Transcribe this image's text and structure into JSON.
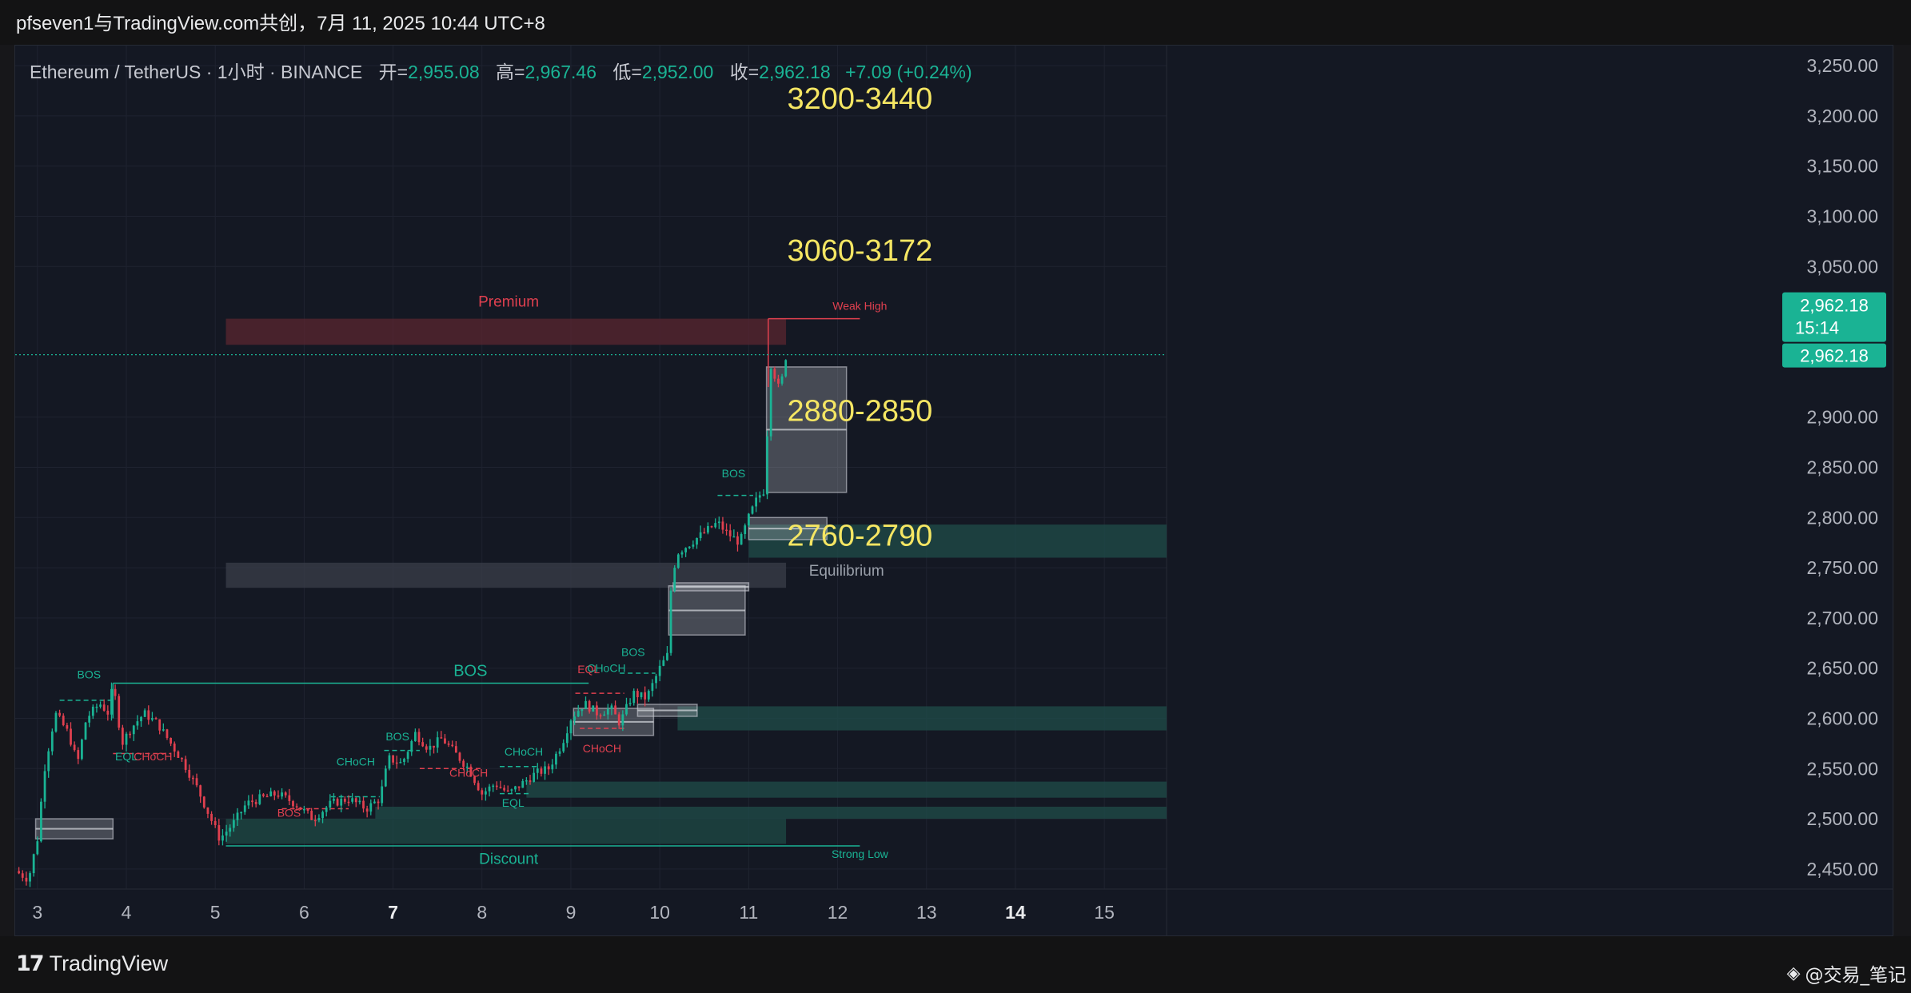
{
  "header": {
    "title": "pfseven1与TradingView.com共创，7月 11, 2025 10:44 UTC+8"
  },
  "symbol": {
    "name": "Ethereum / TetherUS · 1小时 · BINANCE",
    "open_label": "开=",
    "open": "2,955.08",
    "high_label": "高=",
    "high": "2,967.46",
    "low_label": "低=",
    "low": "2,952.00",
    "close_label": "收=",
    "close": "2,962.18",
    "change": "+7.09 (+0.24%)"
  },
  "price_tag": {
    "price": "2,962.18",
    "countdown": "15:14",
    "price2": "2,962.18"
  },
  "colors": {
    "up": "#1ab394",
    "down": "#e0404f",
    "target_text": "#f5e663",
    "zone_teal": "#1f4c4a",
    "premium_zone": "#5a2530",
    "background": "#141823"
  },
  "chart_data": {
    "type": "candlestick",
    "y_axis": {
      "range": [
        2430,
        3270
      ],
      "ticks": [
        "3,250.00",
        "3,200.00",
        "3,150.00",
        "3,100.00",
        "3,050.00",
        "2,900.00",
        "2,850.00",
        "2,800.00",
        "2,750.00",
        "2,700.00",
        "2,650.00",
        "2,600.00",
        "2,550.00",
        "2,500.00",
        "2,450.00"
      ],
      "tick_values": [
        3250,
        3200,
        3150,
        3100,
        3050,
        2900,
        2850,
        2800,
        2750,
        2700,
        2650,
        2600,
        2550,
        2500,
        2450
      ]
    },
    "x_axis": {
      "range": [
        2.75,
        15.7
      ],
      "ticks": [
        {
          "value": 3,
          "label": "3",
          "bold": false
        },
        {
          "value": 4,
          "label": "4",
          "bold": false
        },
        {
          "value": 5,
          "label": "5",
          "bold": false
        },
        {
          "value": 6,
          "label": "6",
          "bold": false
        },
        {
          "value": 7,
          "label": "7",
          "bold": true
        },
        {
          "value": 8,
          "label": "8",
          "bold": false
        },
        {
          "value": 9,
          "label": "9",
          "bold": false
        },
        {
          "value": 10,
          "label": "10",
          "bold": false
        },
        {
          "value": 11,
          "label": "11",
          "bold": false
        },
        {
          "value": 12,
          "label": "12",
          "bold": false
        },
        {
          "value": 13,
          "label": "13",
          "bold": false
        },
        {
          "value": 14,
          "label": "14",
          "bold": true
        },
        {
          "value": 15,
          "label": "15",
          "bold": false
        }
      ]
    },
    "grid": true,
    "current_price": 2962.18,
    "price_path": [
      [
        2.75,
        2448
      ],
      [
        2.9,
        2440
      ],
      [
        3.0,
        2480
      ],
      [
        3.08,
        2550
      ],
      [
        3.2,
        2605
      ],
      [
        3.35,
        2585
      ],
      [
        3.45,
        2555
      ],
      [
        3.55,
        2600
      ],
      [
        3.7,
        2615
      ],
      [
        3.8,
        2605
      ],
      [
        3.85,
        2635
      ],
      [
        3.95,
        2575
      ],
      [
        4.05,
        2590
      ],
      [
        4.2,
        2605
      ],
      [
        4.35,
        2595
      ],
      [
        4.5,
        2575
      ],
      [
        4.65,
        2555
      ],
      [
        4.8,
        2530
      ],
      [
        4.95,
        2500
      ],
      [
        5.05,
        2480
      ],
      [
        5.2,
        2495
      ],
      [
        5.35,
        2515
      ],
      [
        5.5,
        2520
      ],
      [
        5.7,
        2525
      ],
      [
        5.9,
        2515
      ],
      [
        6.1,
        2500
      ],
      [
        6.3,
        2515
      ],
      [
        6.5,
        2520
      ],
      [
        6.7,
        2510
      ],
      [
        6.85,
        2520
      ],
      [
        6.95,
        2560
      ],
      [
        7.1,
        2555
      ],
      [
        7.25,
        2585
      ],
      [
        7.4,
        2570
      ],
      [
        7.55,
        2580
      ],
      [
        7.7,
        2565
      ],
      [
        7.85,
        2550
      ],
      [
        8.0,
        2525
      ],
      [
        8.15,
        2535
      ],
      [
        8.3,
        2525
      ],
      [
        8.45,
        2535
      ],
      [
        8.6,
        2545
      ],
      [
        8.75,
        2550
      ],
      [
        8.9,
        2575
      ],
      [
        9.0,
        2600
      ],
      [
        9.15,
        2615
      ],
      [
        9.3,
        2605
      ],
      [
        9.45,
        2610
      ],
      [
        9.55,
        2595
      ],
      [
        9.7,
        2625
      ],
      [
        9.85,
        2620
      ],
      [
        10.0,
        2650
      ],
      [
        10.1,
        2665
      ],
      [
        10.13,
        2740
      ],
      [
        10.2,
        2765
      ],
      [
        10.35,
        2775
      ],
      [
        10.5,
        2785
      ],
      [
        10.65,
        2795
      ],
      [
        10.75,
        2785
      ],
      [
        10.9,
        2775
      ],
      [
        11.0,
        2800
      ],
      [
        11.1,
        2820
      ],
      [
        11.2,
        2830
      ],
      [
        11.22,
        2960
      ],
      [
        11.28,
        2945
      ],
      [
        11.35,
        2925
      ],
      [
        11.42,
        2962
      ]
    ],
    "zones": [
      {
        "name": "premium",
        "label": "Premium",
        "x": [
          5.12,
          11.42
        ],
        "y": [
          2972,
          2998
        ],
        "color": "#5a2530"
      },
      {
        "name": "equilibrium",
        "label": "Equilibrium",
        "x": [
          5.12,
          11.42
        ],
        "y": [
          2730,
          2755
        ],
        "color": "#3a3e4a"
      },
      {
        "name": "discount",
        "label": "Discount",
        "x": [
          5.12,
          11.42
        ],
        "y": [
          2475,
          2500
        ],
        "color": "#1e4a46"
      },
      {
        "name": "ob-2760-2790",
        "x": [
          11.0,
          15.7
        ],
        "y": [
          2760,
          2793
        ],
        "color": "#1f4c4a"
      },
      {
        "name": "ob-2600",
        "x": [
          10.2,
          15.7
        ],
        "y": [
          2588,
          2612
        ],
        "color": "#1f4c4a"
      },
      {
        "name": "ob-2530",
        "x": [
          8.5,
          15.7
        ],
        "y": [
          2521,
          2537
        ],
        "color": "#1f4c4a"
      },
      {
        "name": "ob-2505",
        "x": [
          6.8,
          15.7
        ],
        "y": [
          2500,
          2512
        ],
        "color": "#1f4c4a"
      }
    ],
    "boxes": [
      {
        "x": [
          11.2,
          12.1
        ],
        "y": [
          2825,
          2950
        ]
      },
      {
        "x": [
          11.0,
          11.88
        ],
        "y": [
          2778,
          2800
        ]
      },
      {
        "x": [
          10.1,
          10.96
        ],
        "y": [
          2683,
          2732
        ]
      },
      {
        "x": [
          10.15,
          11.0
        ],
        "y": [
          2727,
          2735
        ]
      },
      {
        "x": [
          9.03,
          9.93
        ],
        "y": [
          2583,
          2610
        ]
      },
      {
        "x": [
          9.75,
          10.42
        ],
        "y": [
          2602,
          2614
        ]
      },
      {
        "x": [
          2.98,
          3.85
        ],
        "y": [
          2480,
          2500
        ]
      }
    ],
    "lines": [
      {
        "name": "weak-high-line",
        "x": [
          11.22,
          12.25
        ],
        "y": 2998,
        "color": "#e0404f"
      },
      {
        "name": "strong-low-line",
        "x": [
          5.12,
          12.25
        ],
        "y": 2473,
        "color": "#1ab394"
      },
      {
        "name": "bos-major-line",
        "x": [
          3.85,
          9.2
        ],
        "y": 2635,
        "color": "#1ab394"
      }
    ],
    "labels": [
      {
        "name": "target-3200",
        "text": "3200-3440",
        "x": 12.25,
        "y": 3207,
        "kind": "target"
      },
      {
        "name": "target-3060",
        "text": "3060-3172",
        "x": 12.25,
        "y": 3056,
        "kind": "target"
      },
      {
        "name": "target-2880",
        "text": "2880-2850",
        "x": 12.25,
        "y": 2896,
        "kind": "target"
      },
      {
        "name": "target-2760",
        "text": "2760-2790",
        "x": 12.25,
        "y": 2772,
        "kind": "target"
      },
      {
        "name": "label-premium",
        "text": "Premium",
        "x": 8.3,
        "y": 3010,
        "kind": "zone-red"
      },
      {
        "name": "label-equilibrium",
        "text": "Equilibrium",
        "x": 12.1,
        "y": 2742,
        "kind": "zone-grey"
      },
      {
        "name": "label-discount",
        "text": "Discount",
        "x": 8.3,
        "y": 2455,
        "kind": "zone-teal"
      },
      {
        "name": "label-weak-high",
        "text": "Weak High",
        "x": 12.25,
        "y": 3007,
        "kind": "small-red"
      },
      {
        "name": "label-strong-low",
        "text": "Strong Low",
        "x": 12.25,
        "y": 2461,
        "kind": "small-teal"
      },
      {
        "name": "label-bos-major",
        "text": "BOS",
        "x": 7.87,
        "y": 2642,
        "kind": "teal-big"
      },
      {
        "name": "label-bos-1",
        "text": "BOS",
        "x": 3.58,
        "y": 2640,
        "kind": "small-teal"
      },
      {
        "name": "label-eql-1",
        "text": "EQL",
        "x": 4.0,
        "y": 2558,
        "kind": "small-teal"
      },
      {
        "name": "label-choch-1",
        "text": "CHoCH",
        "x": 4.3,
        "y": 2558,
        "kind": "small-red"
      },
      {
        "name": "label-bos-2",
        "text": "BOS",
        "x": 5.83,
        "y": 2502,
        "kind": "small-red"
      },
      {
        "name": "label-choch-2",
        "text": "CHoCH",
        "x": 6.58,
        "y": 2553,
        "kind": "small-teal"
      },
      {
        "name": "label-bos-3",
        "text": "BOS",
        "x": 7.05,
        "y": 2578,
        "kind": "small-teal"
      },
      {
        "name": "label-choch-3",
        "text": "CHoCH",
        "x": 7.85,
        "y": 2542,
        "kind": "small-red"
      },
      {
        "name": "label-choch-4",
        "text": "CHoCH",
        "x": 8.47,
        "y": 2563,
        "kind": "small-teal"
      },
      {
        "name": "label-eql-2",
        "text": "EQL",
        "x": 8.35,
        "y": 2512,
        "kind": "small-teal"
      },
      {
        "name": "label-eql-3",
        "text": "EQL",
        "x": 9.2,
        "y": 2645,
        "kind": "small-red"
      },
      {
        "name": "label-choch-5",
        "text": "CHoCH",
        "x": 9.4,
        "y": 2646,
        "kind": "small-teal"
      },
      {
        "name": "label-choch-6",
        "text": "CHoCH",
        "x": 9.35,
        "y": 2566,
        "kind": "small-red"
      },
      {
        "name": "label-bos-4",
        "text": "BOS",
        "x": 9.7,
        "y": 2662,
        "kind": "small-teal"
      },
      {
        "name": "label-bos-5",
        "text": "BOS",
        "x": 10.83,
        "y": 2840,
        "kind": "small-teal"
      }
    ],
    "dashed_marks": [
      {
        "x": [
          3.25,
          3.85
        ],
        "y": 2618,
        "color": "#1ab394"
      },
      {
        "x": [
          3.85,
          4.5
        ],
        "y": 2565,
        "color": "#e0404f"
      },
      {
        "x": [
          5.75,
          6.5
        ],
        "y": 2510,
        "color": "#e0404f"
      },
      {
        "x": [
          6.3,
          6.85
        ],
        "y": 2522,
        "color": "#1ab394"
      },
      {
        "x": [
          6.9,
          7.3
        ],
        "y": 2568,
        "color": "#1ab394"
      },
      {
        "x": [
          7.3,
          8.0
        ],
        "y": 2550,
        "color": "#e0404f"
      },
      {
        "x": [
          8.2,
          8.65
        ],
        "y": 2552,
        "color": "#1ab394"
      },
      {
        "x": [
          8.2,
          8.55
        ],
        "y": 2525,
        "color": "#1ab394"
      },
      {
        "x": [
          9.05,
          9.6
        ],
        "y": 2625,
        "color": "#e0404f"
      },
      {
        "x": [
          9.55,
          9.95
        ],
        "y": 2645,
        "color": "#1ab394"
      },
      {
        "x": [
          9.1,
          9.6
        ],
        "y": 2590,
        "color": "#e0404f"
      },
      {
        "x": [
          10.65,
          11.05
        ],
        "y": 2822,
        "color": "#1ab394"
      }
    ]
  },
  "footer": {
    "brand": "TradingView",
    "watermark": "@交易_笔记"
  }
}
